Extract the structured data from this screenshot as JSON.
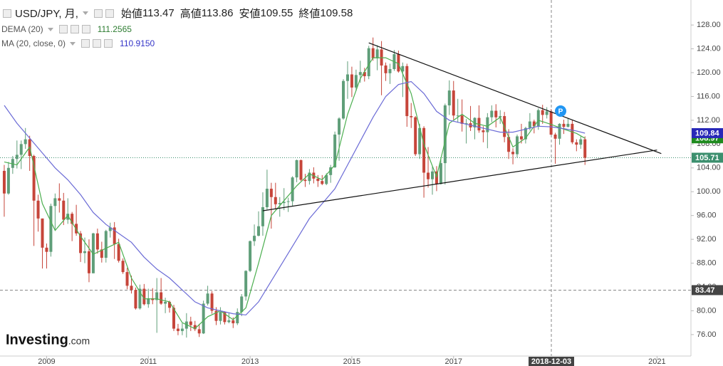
{
  "chart_data": {
    "type": "candlestick",
    "title": "USD/JPY, 月,",
    "ohlc_labels": [
      "始値",
      "高値",
      "安値",
      "終値"
    ],
    "up_color": "#5f9e79",
    "down_color": "#c6453a",
    "xlim": [
      "2008-02",
      "2021-09"
    ],
    "xticks": [
      "2009",
      "2011",
      "2013",
      "2015",
      "2017",
      "2021"
    ],
    "ylim": [
      72.4,
      132.2
    ],
    "yticks": [
      {
        "value": 76,
        "label": "76.00"
      },
      {
        "value": 80,
        "label": "80.00"
      },
      {
        "value": 84,
        "label": "84.00"
      },
      {
        "value": 88,
        "label": "88.00"
      },
      {
        "value": 92,
        "label": "92.00"
      },
      {
        "value": 96,
        "label": "96.00"
      },
      {
        "value": 100,
        "label": "100.00"
      },
      {
        "value": 104,
        "label": "104.00"
      },
      {
        "value": 108,
        "label": "108.00"
      },
      {
        "value": 112,
        "label": "112.00"
      },
      {
        "value": 116,
        "label": "116.00"
      },
      {
        "value": 120,
        "label": "120.00"
      },
      {
        "value": 124,
        "label": "124.00"
      },
      {
        "value": 128,
        "label": "128.00"
      }
    ],
    "x": [
      "2008-03",
      "2008-04",
      "2008-05",
      "2008-06",
      "2008-07",
      "2008-08",
      "2008-09",
      "2008-10",
      "2008-11",
      "2008-12",
      "2009-01",
      "2009-02",
      "2009-03",
      "2009-04",
      "2009-05",
      "2009-06",
      "2009-07",
      "2009-08",
      "2009-09",
      "2009-10",
      "2009-11",
      "2009-12",
      "2010-01",
      "2010-02",
      "2010-03",
      "2010-04",
      "2010-05",
      "2010-06",
      "2010-07",
      "2010-08",
      "2010-09",
      "2010-10",
      "2010-11",
      "2010-12",
      "2011-01",
      "2011-02",
      "2011-03",
      "2011-04",
      "2011-05",
      "2011-06",
      "2011-07",
      "2011-08",
      "2011-09",
      "2011-10",
      "2011-11",
      "2011-12",
      "2012-01",
      "2012-02",
      "2012-03",
      "2012-04",
      "2012-05",
      "2012-06",
      "2012-07",
      "2012-08",
      "2012-09",
      "2012-10",
      "2012-11",
      "2012-12",
      "2013-01",
      "2013-02",
      "2013-03",
      "2013-04",
      "2013-05",
      "2013-06",
      "2013-07",
      "2013-08",
      "2013-09",
      "2013-10",
      "2013-11",
      "2013-12",
      "2014-01",
      "2014-02",
      "2014-03",
      "2014-04",
      "2014-05",
      "2014-06",
      "2014-07",
      "2014-08",
      "2014-09",
      "2014-10",
      "2014-11",
      "2014-12",
      "2015-01",
      "2015-02",
      "2015-03",
      "2015-04",
      "2015-05",
      "2015-06",
      "2015-07",
      "2015-08",
      "2015-09",
      "2015-10",
      "2015-11",
      "2015-12",
      "2016-01",
      "2016-02",
      "2016-03",
      "2016-04",
      "2016-05",
      "2016-06",
      "2016-07",
      "2016-08",
      "2016-09",
      "2016-10",
      "2016-11",
      "2016-12",
      "2017-01",
      "2017-02",
      "2017-03",
      "2017-04",
      "2017-05",
      "2017-06",
      "2017-07",
      "2017-08",
      "2017-09",
      "2017-10",
      "2017-11",
      "2017-12",
      "2018-01",
      "2018-02",
      "2018-03",
      "2018-04",
      "2018-05",
      "2018-06",
      "2018-07",
      "2018-08",
      "2018-09",
      "2018-10",
      "2018-11",
      "2018-12",
      "2019-01",
      "2019-02",
      "2019-03",
      "2019-04",
      "2019-05",
      "2019-06",
      "2019-07",
      "2019-08"
    ],
    "open": [
      103.5,
      99.7,
      104.0,
      105.5,
      106.2,
      108.0,
      108.8,
      106.0,
      98.5,
      95.5,
      90.6,
      89.9,
      97.6,
      98.9,
      98.5,
      95.3,
      96.3,
      94.6,
      93.0,
      89.7,
      90.0,
      86.3,
      93.0,
      90.3,
      88.9,
      93.4,
      94.0,
      91.2,
      88.4,
      86.5,
      84.2,
      83.5,
      80.4,
      83.7,
      81.1,
      82.1,
      81.8,
      83.1,
      81.2,
      81.5,
      80.5,
      77.0,
      76.6,
      77.0,
      78.2,
      77.6,
      76.9,
      76.2,
      81.2,
      82.9,
      80.0,
      78.3,
      79.8,
      78.1,
      78.4,
      77.9,
      79.8,
      82.4,
      86.7,
      91.7,
      92.6,
      94.2,
      97.4,
      100.5,
      99.1,
      97.9,
      98.1,
      98.3,
      98.4,
      102.4,
      105.3,
      102.0,
      101.8,
      103.2,
      102.2,
      101.8,
      101.3,
      102.8,
      104.1,
      109.6,
      112.3,
      118.6,
      119.7,
      117.5,
      119.6,
      120.1,
      119.4,
      124.1,
      122.4,
      123.9,
      121.2,
      119.9,
      120.6,
      123.1,
      120.2,
      121.1,
      112.7,
      112.5,
      106.3,
      110.7,
      103.2,
      102.1,
      103.4,
      101.3,
      104.8,
      114.5,
      117.0,
      112.8,
      112.8,
      111.4,
      111.5,
      110.8,
      112.4,
      110.3,
      110.0,
      112.5,
      113.6,
      112.5,
      112.7,
      109.2,
      106.7,
      106.3,
      109.3,
      108.8,
      110.7,
      111.8,
      111.0,
      113.7,
      112.9,
      113.47,
      109.6,
      108.9,
      111.4,
      110.9,
      111.4,
      108.3,
      107.9,
      108.8
    ],
    "high": [
      104.5,
      105.0,
      106.0,
      108.6,
      108.6,
      110.7,
      109.4,
      106.2,
      99.5,
      95.5,
      91.3,
      98.0,
      99.7,
      101.4,
      99.8,
      98.9,
      96.6,
      97.8,
      93.4,
      92.3,
      92.0,
      93.1,
      93.8,
      91.6,
      93.6,
      94.8,
      94.9,
      92.1,
      88.8,
      87.2,
      85.9,
      83.9,
      84.4,
      84.5,
      83.7,
      83.8,
      85.5,
      85.5,
      82.2,
      81.7,
      81.0,
      77.8,
      77.9,
      79.6,
      79.0,
      78.3,
      77.8,
      81.7,
      84.2,
      83.3,
      80.6,
      80.6,
      79.9,
      79.6,
      78.9,
      80.4,
      82.8,
      86.8,
      91.8,
      94.5,
      96.7,
      99.9,
      103.7,
      101.5,
      101.5,
      99.1,
      100.6,
      99.0,
      102.6,
      105.4,
      105.4,
      103.0,
      103.8,
      104.1,
      102.8,
      102.8,
      103.1,
      104.5,
      110.1,
      112.5,
      118.9,
      121.9,
      121.0,
      120.5,
      122.0,
      120.8,
      124.5,
      125.9,
      124.6,
      125.3,
      121.7,
      121.5,
      123.8,
      123.7,
      121.7,
      121.5,
      114.9,
      112.7,
      111.4,
      111.0,
      107.5,
      104.3,
      104.3,
      105.5,
      114.8,
      118.7,
      118.6,
      115.6,
      115.5,
      112.2,
      114.4,
      112.5,
      114.5,
      111.0,
      113.2,
      114.5,
      114.7,
      113.7,
      113.4,
      110.5,
      107.3,
      109.6,
      111.4,
      110.9,
      113.2,
      112.1,
      114.0,
      114.6,
      114.2,
      113.86,
      109.9,
      111.5,
      112.1,
      112.4,
      112.0,
      108.8,
      109.3,
      109.3
    ],
    "low": [
      95.8,
      99.5,
      103.0,
      103.9,
      103.8,
      107.2,
      103.5,
      90.9,
      93.3,
      87.1,
      87.1,
      89.1,
      93.5,
      96.5,
      94.4,
      94.6,
      91.7,
      92.6,
      88.2,
      88.0,
      84.8,
      86.3,
      89.6,
      88.1,
      88.1,
      92.3,
      88.7,
      88.1,
      86.2,
      83.6,
      82.9,
      80.2,
      80.2,
      80.9,
      80.5,
      81.1,
      76.3,
      81.0,
      79.6,
      79.7,
      76.6,
      75.9,
      75.9,
      75.5,
      76.6,
      76.6,
      75.6,
      76.1,
      80.9,
      79.5,
      77.6,
      77.7,
      77.7,
      77.9,
      77.1,
      77.6,
      79.1,
      81.7,
      86.5,
      90.9,
      92.5,
      92.6,
      97.0,
      93.8,
      97.0,
      95.8,
      96.9,
      96.6,
      97.6,
      101.6,
      101.8,
      100.8,
      101.2,
      101.4,
      100.8,
      101.1,
      101.1,
      101.5,
      104.0,
      105.2,
      112.1,
      115.6,
      115.9,
      116.9,
      118.3,
      118.5,
      118.9,
      122.0,
      120.4,
      116.2,
      118.6,
      118.1,
      120.3,
      120.0,
      115.9,
      110.9,
      110.7,
      106.0,
      105.5,
      99.0,
      100.7,
      99.5,
      100.1,
      101.2,
      101.2,
      112.9,
      112.1,
      111.6,
      110.1,
      108.1,
      110.2,
      108.8,
      109.9,
      108.3,
      107.3,
      111.7,
      110.8,
      111.4,
      108.3,
      105.5,
      104.6,
      105.7,
      108.1,
      108.1,
      110.3,
      109.8,
      110.4,
      111.4,
      112.3,
      109.55,
      104.7,
      107.9,
      109.7,
      110.8,
      108.0,
      106.8,
      107.2,
      104.5
    ],
    "close": [
      99.7,
      104.0,
      105.5,
      106.2,
      108.0,
      108.8,
      106.0,
      98.5,
      95.5,
      90.6,
      89.9,
      97.6,
      98.9,
      98.5,
      95.3,
      96.3,
      94.6,
      93.0,
      89.7,
      90.0,
      86.3,
      93.0,
      90.3,
      88.9,
      93.4,
      94.0,
      91.2,
      88.4,
      86.5,
      84.2,
      83.5,
      80.4,
      83.7,
      81.1,
      82.1,
      81.8,
      83.1,
      81.2,
      81.5,
      80.5,
      77.0,
      76.6,
      77.0,
      78.2,
      77.6,
      76.9,
      76.2,
      81.2,
      82.9,
      80.0,
      78.3,
      79.8,
      78.1,
      78.4,
      77.9,
      79.8,
      82.4,
      86.7,
      91.7,
      92.6,
      94.2,
      97.4,
      100.5,
      99.1,
      97.9,
      98.1,
      98.3,
      98.4,
      102.4,
      105.3,
      102.0,
      101.8,
      103.2,
      102.2,
      101.8,
      101.3,
      102.8,
      104.1,
      109.6,
      112.3,
      118.6,
      119.7,
      117.5,
      119.6,
      120.1,
      119.4,
      124.1,
      122.4,
      123.9,
      121.2,
      119.9,
      120.6,
      123.1,
      120.2,
      121.1,
      112.7,
      112.5,
      106.3,
      110.7,
      103.2,
      102.1,
      103.4,
      101.3,
      104.8,
      114.5,
      117.0,
      112.8,
      112.8,
      111.4,
      111.5,
      110.8,
      112.4,
      110.3,
      110.0,
      112.5,
      113.6,
      112.5,
      112.7,
      109.2,
      106.7,
      106.3,
      109.3,
      108.8,
      110.7,
      111.8,
      111.0,
      113.7,
      112.9,
      113.5,
      109.58,
      108.9,
      111.4,
      110.9,
      111.4,
      108.3,
      107.9,
      108.8,
      105.71
    ],
    "indicators": [
      {
        "name": "DEMA (20)",
        "legend_value": 111.2565,
        "color": "#4caf50",
        "tag_color": "#1e8a1e",
        "x": [
          "2008-03",
          "2008-06",
          "2008-09",
          "2008-12",
          "2009-03",
          "2009-06",
          "2009-09",
          "2009-12",
          "2010-03",
          "2010-06",
          "2010-09",
          "2010-12",
          "2011-03",
          "2011-06",
          "2011-09",
          "2011-12",
          "2012-03",
          "2012-06",
          "2012-09",
          "2012-12",
          "2013-03",
          "2013-06",
          "2013-09",
          "2013-12",
          "2014-03",
          "2014-06",
          "2014-09",
          "2014-12",
          "2015-03",
          "2015-06",
          "2015-09",
          "2015-12",
          "2016-03",
          "2016-06",
          "2016-09",
          "2016-12",
          "2017-03",
          "2017-06",
          "2017-09",
          "2017-12",
          "2018-03",
          "2018-06",
          "2018-09",
          "2018-12",
          "2019-03",
          "2019-06",
          "2019-08"
        ],
        "values": [
          105.0,
          104.5,
          107.5,
          98.0,
          93.5,
          96.0,
          92.5,
          89.5,
          90.5,
          91.5,
          85.5,
          82.0,
          82.0,
          81.5,
          78.0,
          77.0,
          79.0,
          80.0,
          78.5,
          80.5,
          88.0,
          96.0,
          98.5,
          101.0,
          103.0,
          102.0,
          104.5,
          113.0,
          119.0,
          122.5,
          122.5,
          121.5,
          116.5,
          108.0,
          102.5,
          111.5,
          113.0,
          111.5,
          111.0,
          112.5,
          107.5,
          109.0,
          112.0,
          111.3,
          110.5,
          109.8,
          108.97
        ]
      },
      {
        "name": "MA (20, close, 0)",
        "legend_value": 110.915,
        "legend_value_label": "110.9150",
        "color": "#6b6bd6",
        "tag_color": "#2828b8",
        "x": [
          "2008-03",
          "2008-06",
          "2008-09",
          "2008-12",
          "2009-03",
          "2009-06",
          "2009-09",
          "2009-12",
          "2010-03",
          "2010-06",
          "2010-09",
          "2010-12",
          "2011-03",
          "2011-06",
          "2011-09",
          "2011-12",
          "2012-03",
          "2012-06",
          "2012-09",
          "2012-12",
          "2013-03",
          "2013-06",
          "2013-09",
          "2013-12",
          "2014-03",
          "2014-06",
          "2014-09",
          "2014-12",
          "2015-03",
          "2015-06",
          "2015-09",
          "2015-12",
          "2016-03",
          "2016-06",
          "2016-09",
          "2016-12",
          "2017-03",
          "2017-06",
          "2017-09",
          "2017-12",
          "2018-03",
          "2018-06",
          "2018-09",
          "2018-12",
          "2019-03",
          "2019-06",
          "2019-08"
        ],
        "values": [
          114.5,
          111.5,
          109.0,
          106.5,
          104.0,
          102.0,
          99.5,
          96.5,
          94.5,
          93.0,
          91.5,
          89.0,
          87.0,
          85.5,
          83.5,
          81.5,
          80.5,
          80.0,
          79.5,
          79.3,
          81.5,
          85.0,
          88.5,
          92.0,
          95.5,
          98.0,
          100.5,
          104.5,
          108.5,
          112.5,
          116.0,
          118.0,
          118.5,
          116.5,
          113.5,
          112.0,
          111.5,
          111.0,
          110.5,
          110.0,
          110.0,
          110.5,
          111.0,
          110.9,
          110.6,
          110.2,
          109.84
        ]
      }
    ],
    "trendlines": [
      {
        "x": [
          "2015-05",
          "2021-02"
        ],
        "values": [
          125.0,
          106.4
        ]
      },
      {
        "x": [
          "2013-04",
          "2021-01"
        ],
        "values": [
          96.8,
          107.0
        ]
      }
    ],
    "crosshair": {
      "x": "2018-12-03",
      "y": 83.47
    },
    "marker_label": "P",
    "logo": "Investing",
    "logo_suffix": ".com"
  }
}
